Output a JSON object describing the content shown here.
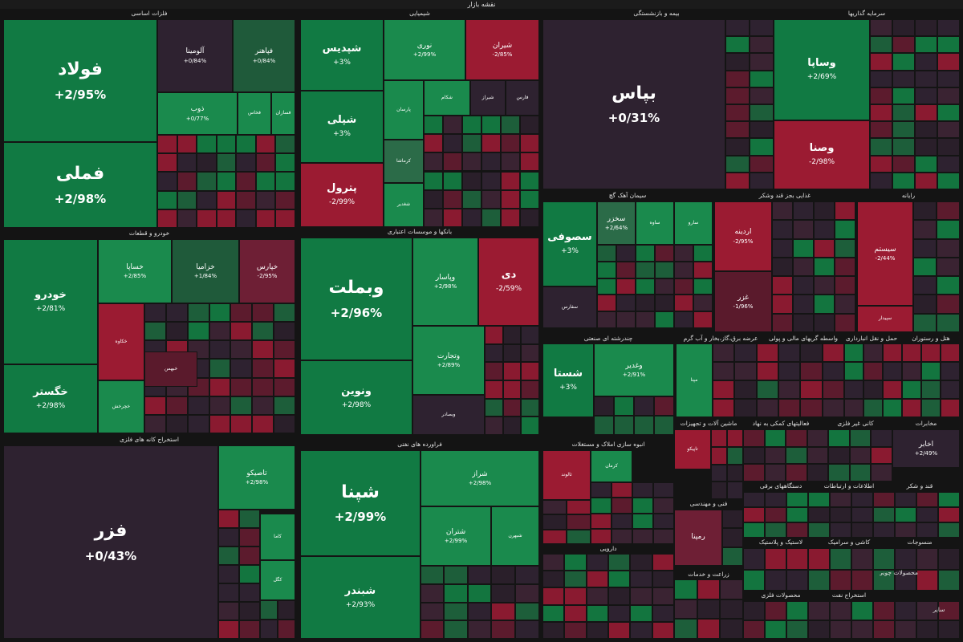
{
  "header": {
    "title": "نقشه بازار"
  },
  "colors": {
    "dg": "#117a43",
    "g": "#1a8a4d",
    "mg": "#2b6b48",
    "dk": "#2e2230",
    "mr": "#6e1f35",
    "r": "#9b1b32",
    "dr": "#5a1a2c"
  },
  "filler_palette": [
    "#2e2230",
    "#13753f",
    "#3a2332",
    "#8a1a30",
    "#1d5e3a",
    "#2a1f2a",
    "#5c1b2d"
  ],
  "sectors": [
    {
      "label": "فلزات اساسی"
    },
    {
      "label": "شیمیایی"
    },
    {
      "label": "بیمه و بازنشستگی"
    },
    {
      "label": "سرمایه گذاریها"
    },
    {
      "label": "خودرو و قطعات"
    },
    {
      "label": "بانکها و موسسات اعتباری"
    },
    {
      "label": "سیمان آهک گچ"
    },
    {
      "label": "غذایی بجز قند وشکر"
    },
    {
      "label": "رایانه"
    },
    {
      "label": "چندرشته ای صنعتی"
    },
    {
      "label": "عرضه برق،گاز،بخار و آب گرم"
    },
    {
      "label": "واسطه گریهای مالی و پولی"
    },
    {
      "label": "حمل و نقل انبارداری"
    },
    {
      "label": "هتل و رستوران"
    },
    {
      "label": "استخراج کانه های فلزی"
    },
    {
      "label": "فراورده های نفتی"
    },
    {
      "label": "انبوه سازی املاک و مستغلات"
    },
    {
      "label": "ماشین آلات و تجهیزات"
    },
    {
      "label": "فعالیتهای کمکی به نهاد"
    },
    {
      "label": "کانی غیر فلزی"
    },
    {
      "label": "مخابرات"
    },
    {
      "label": "دستگاههای برقی"
    },
    {
      "label": "اطلاعات و ارتباطات"
    },
    {
      "label": "قند و شکر"
    },
    {
      "label": "فنی و مهندسی"
    },
    {
      "label": "لاستیک و پلاستیک"
    },
    {
      "label": "کاشی و سرامیک"
    },
    {
      "label": "منسوجات"
    },
    {
      "label": "دارویی"
    },
    {
      "label": "زراعت و خدمات"
    },
    {
      "label": "محصولات فلزی"
    },
    {
      "label": "استخراج نفت"
    },
    {
      "label": "محصولات چوبی"
    },
    {
      "label": "سایر"
    }
  ],
  "tiles": [
    {
      "name": "فولاد",
      "change": "+2/95%"
    },
    {
      "name": "فملی",
      "change": "+2/98%"
    },
    {
      "name": "آلومینا",
      "change": "+0/84%"
    },
    {
      "name": "فپاهنر",
      "change": "+0/84%"
    },
    {
      "name": "ذوب",
      "change": "+0/77%"
    },
    {
      "name": "فخاس",
      "change": ""
    },
    {
      "name": "فسازان",
      "change": ""
    },
    {
      "name": "شپدیس",
      "change": "+3%"
    },
    {
      "name": "شپلی",
      "change": "+3%"
    },
    {
      "name": "پترول",
      "change": "-2/99%"
    },
    {
      "name": "نوری",
      "change": "+2/99%"
    },
    {
      "name": "شیران",
      "change": "-2/85%"
    },
    {
      "name": "پارسان",
      "change": ""
    },
    {
      "name": "شکام",
      "change": ""
    },
    {
      "name": "شیراز",
      "change": ""
    },
    {
      "name": "فارس",
      "change": ""
    },
    {
      "name": "کرماشا",
      "change": ""
    },
    {
      "name": "شغدیر",
      "change": ""
    },
    {
      "name": "بپاس",
      "change": "+0/31%"
    },
    {
      "name": "وساپا",
      "change": "+2/69%"
    },
    {
      "name": "وصنا",
      "change": "-2/98%"
    },
    {
      "name": "خودرو",
      "change": "+2/81%"
    },
    {
      "name": "خگستر",
      "change": "+2/98%"
    },
    {
      "name": "خساپا",
      "change": "+2/85%"
    },
    {
      "name": "خزامیا",
      "change": "+1/84%"
    },
    {
      "name": "خپارس",
      "change": "-2/95%"
    },
    {
      "name": "خکاوه",
      "change": ""
    },
    {
      "name": "خبهمن",
      "change": ""
    },
    {
      "name": "خچرخش",
      "change": ""
    },
    {
      "name": "وبملت",
      "change": "+2/96%"
    },
    {
      "name": "ونوین",
      "change": "+2/98%"
    },
    {
      "name": "وپاسار",
      "change": "+2/98%"
    },
    {
      "name": "دی",
      "change": "-2/59%"
    },
    {
      "name": "وتجارت",
      "change": "+2/89%"
    },
    {
      "name": "وبصادر",
      "change": ""
    },
    {
      "name": "سصوفی",
      "change": "+3%"
    },
    {
      "name": "سفارس",
      "change": ""
    },
    {
      "name": "سخزر",
      "change": "+2/64%"
    },
    {
      "name": "ساوه",
      "change": ""
    },
    {
      "name": "سارو",
      "change": ""
    },
    {
      "name": "غزر",
      "change": "-1/96%"
    },
    {
      "name": "اردینه",
      "change": "-2/95%"
    },
    {
      "name": "سیستم",
      "change": "-2/44%"
    },
    {
      "name": "سپیدار",
      "change": ""
    },
    {
      "name": "شستا",
      "change": "+3%"
    },
    {
      "name": "وغدیر",
      "change": "+2/91%"
    },
    {
      "name": "مپنا",
      "change": ""
    },
    {
      "name": "فزر",
      "change": "+0/43%"
    },
    {
      "name": "تاصیکو",
      "change": "+2/98%"
    },
    {
      "name": "کگل",
      "change": ""
    },
    {
      "name": "شپنا",
      "change": "+2/99%"
    },
    {
      "name": "شبندر",
      "change": "+2/93%"
    },
    {
      "name": "شراز",
      "change": "+2/98%"
    },
    {
      "name": "شتران",
      "change": "+2/99%"
    },
    {
      "name": "شبهرن",
      "change": ""
    },
    {
      "name": "ثالوند",
      "change": ""
    },
    {
      "name": "کرمان",
      "change": ""
    },
    {
      "name": "اخابر",
      "change": "+2/49%"
    },
    {
      "name": "رمپنا",
      "change": ""
    },
    {
      "name": "تاپیکو",
      "change": ""
    },
    {
      "name": "کاما",
      "change": ""
    }
  ]
}
